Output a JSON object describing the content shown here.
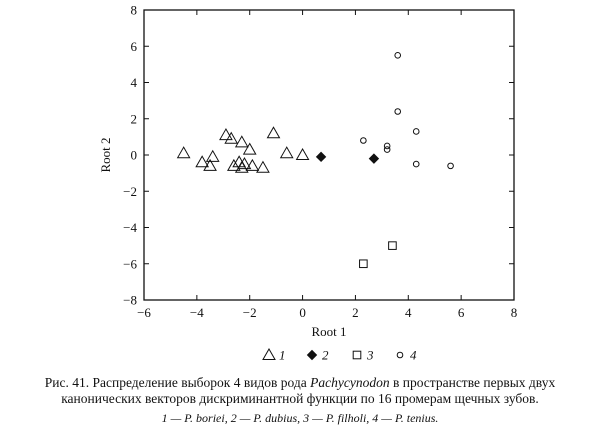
{
  "chart_data": {
    "type": "scatter",
    "xlabel": "Root 1",
    "ylabel": "Root 2",
    "xlim": [
      -6,
      8
    ],
    "ylim": [
      -8,
      8
    ],
    "xticks": [
      -6,
      -4,
      -2,
      0,
      2,
      4,
      6,
      8
    ],
    "yticks": [
      -8,
      -6,
      -4,
      -2,
      0,
      2,
      4,
      6,
      8
    ],
    "grid": false,
    "legend_position": "bottom",
    "series": [
      {
        "name": "1",
        "marker": "triangle",
        "points": [
          [
            -4.5,
            0.1
          ],
          [
            -3.8,
            -0.4
          ],
          [
            -3.5,
            -0.6
          ],
          [
            -3.4,
            -0.1
          ],
          [
            -2.9,
            1.1
          ],
          [
            -2.7,
            0.9
          ],
          [
            -2.6,
            -0.6
          ],
          [
            -2.4,
            -0.4
          ],
          [
            -2.3,
            -0.7
          ],
          [
            -2.3,
            0.7
          ],
          [
            -2.2,
            -0.5
          ],
          [
            -2.0,
            0.3
          ],
          [
            -1.9,
            -0.6
          ],
          [
            -1.5,
            -0.7
          ],
          [
            -1.1,
            1.2
          ],
          [
            -0.6,
            0.1
          ],
          [
            0.0,
            0.0
          ]
        ]
      },
      {
        "name": "2",
        "marker": "diamond-filled",
        "points": [
          [
            0.7,
            -0.1
          ],
          [
            2.7,
            -0.2
          ]
        ]
      },
      {
        "name": "3",
        "marker": "square",
        "points": [
          [
            2.3,
            -6.0
          ],
          [
            3.4,
            -5.0
          ]
        ]
      },
      {
        "name": "4",
        "marker": "circle",
        "points": [
          [
            2.3,
            0.8
          ],
          [
            3.2,
            0.5
          ],
          [
            3.2,
            0.3
          ],
          [
            3.6,
            5.5
          ],
          [
            3.6,
            2.4
          ],
          [
            4.3,
            1.3
          ],
          [
            4.3,
            -0.5
          ],
          [
            5.6,
            -0.6
          ]
        ]
      }
    ]
  },
  "caption": {
    "line1_prefix": "Рис. 41. Распределение выборок 4 видов рода ",
    "line1_genus": "Pachycynodon",
    "line1_suffix": " в пространстве первых двух",
    "line2": "канонических векторов дискриминантной функции по 16 промерам щечных зубов.",
    "line3": "1 — P. boriei, 2 — P. dubius, 3 — P. filholi, 4 — P. tenius."
  }
}
